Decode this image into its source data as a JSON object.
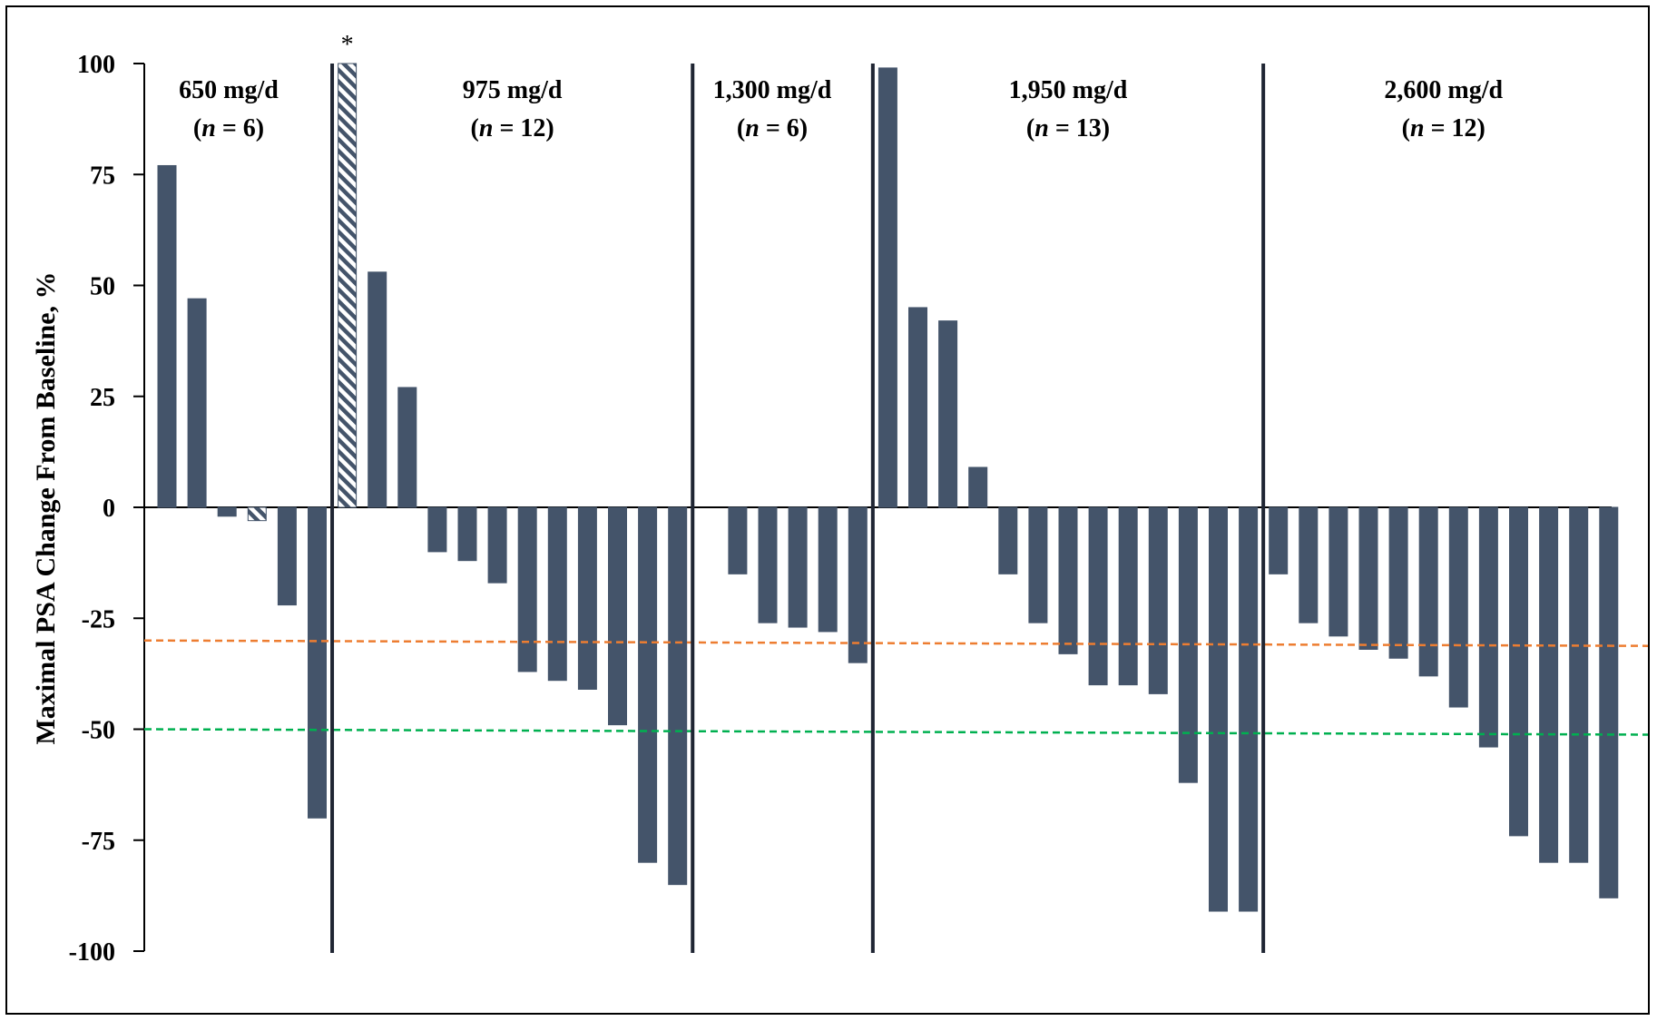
{
  "chart_data": {
    "type": "bar",
    "title": "",
    "ylabel": "Maximal PSA Change From Baseline, %",
    "xlabel": "",
    "ylim": [
      -100,
      100
    ],
    "yticks": [
      100,
      75,
      50,
      25,
      0,
      -25,
      -50,
      -75,
      -100
    ],
    "ytick_labels": [
      "100",
      "75",
      "50",
      "25",
      "0",
      "-25",
      "-50",
      "-75",
      "-100"
    ],
    "grid": false,
    "legend": "none",
    "bar_color": "#44546a",
    "hatch_color": "#44546a",
    "threshold_lines": [
      {
        "value": -30,
        "color": "#ed7d31",
        "style": "dashed"
      },
      {
        "value": -50,
        "color": "#00b050",
        "style": "dashed"
      }
    ],
    "groups": [
      {
        "dose": "650 mg/d",
        "n_label": "n",
        "n_value": " = 6",
        "bars": [
          {
            "value": 77
          },
          {
            "value": 47
          },
          {
            "value": -2
          },
          {
            "value": -3,
            "hatched": true
          },
          {
            "value": -22
          },
          {
            "value": -70
          }
        ]
      },
      {
        "dose": "975 mg/d",
        "n_label": "n",
        "n_value": " = 12",
        "bars": [
          {
            "value": 100,
            "hatched": true,
            "annotation": "*"
          },
          {
            "value": 53
          },
          {
            "value": 27
          },
          {
            "value": -10
          },
          {
            "value": -12
          },
          {
            "value": -17
          },
          {
            "value": -37
          },
          {
            "value": -39
          },
          {
            "value": -41
          },
          {
            "value": -49
          },
          {
            "value": -80
          },
          {
            "value": -85
          }
        ]
      },
      {
        "dose": "1,300 mg/d",
        "n_label": "n",
        "n_value": " = 6",
        "bars": [
          {
            "value": 0
          },
          {
            "value": -15
          },
          {
            "value": -26
          },
          {
            "value": -27
          },
          {
            "value": -28
          },
          {
            "value": -35
          }
        ]
      },
      {
        "dose": "1,950 mg/d",
        "n_label": "n",
        "n_value": " = 13",
        "bars": [
          {
            "value": 99
          },
          {
            "value": 45
          },
          {
            "value": 42
          },
          {
            "value": 9
          },
          {
            "value": -15
          },
          {
            "value": -26
          },
          {
            "value": -33
          },
          {
            "value": -40
          },
          {
            "value": -40
          },
          {
            "value": -42
          },
          {
            "value": -62
          },
          {
            "value": -91
          },
          {
            "value": -91
          }
        ]
      },
      {
        "dose": "2,600 mg/d",
        "n_label": "n",
        "n_value": " = 12",
        "bars": [
          {
            "value": -15
          },
          {
            "value": -26
          },
          {
            "value": -29
          },
          {
            "value": -32
          },
          {
            "value": -34
          },
          {
            "value": -38
          },
          {
            "value": -45
          },
          {
            "value": -54
          },
          {
            "value": -74
          },
          {
            "value": -80
          },
          {
            "value": -80
          },
          {
            "value": -88
          }
        ]
      }
    ]
  }
}
